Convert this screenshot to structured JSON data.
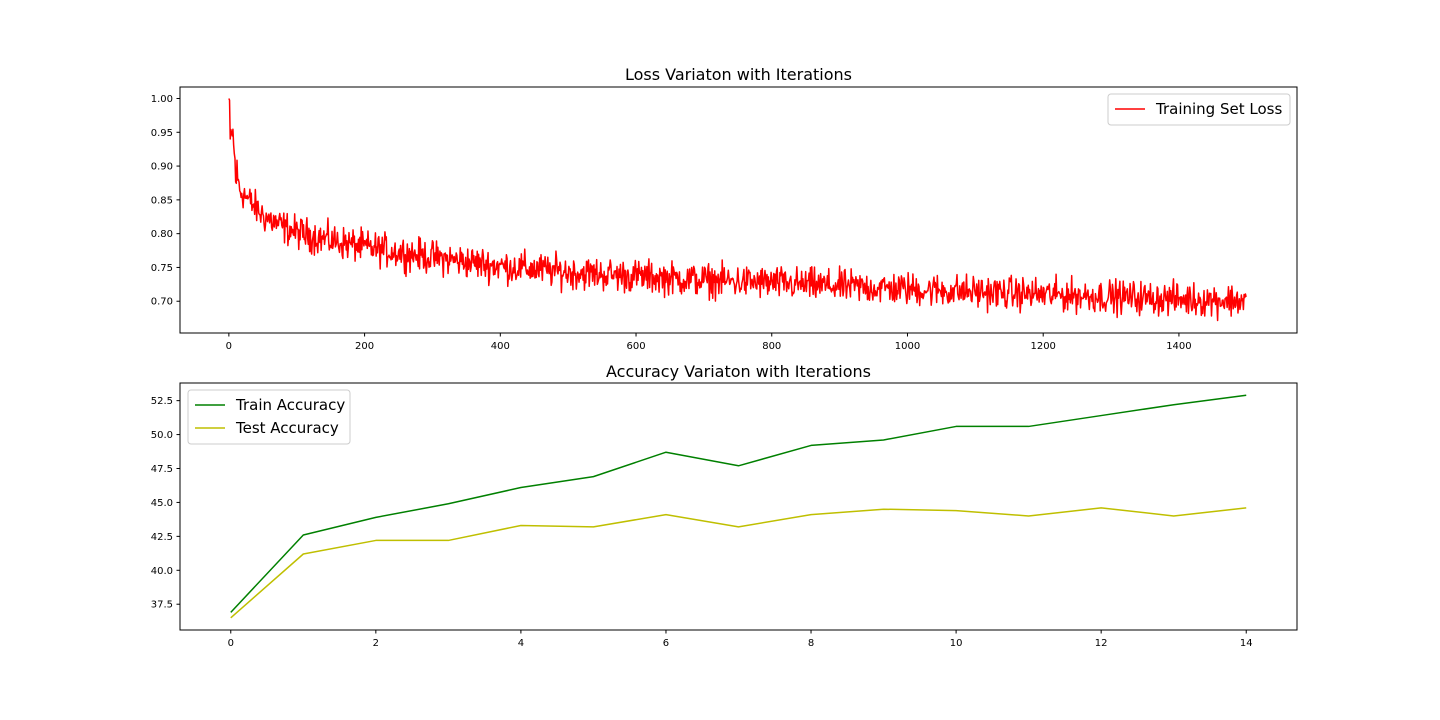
{
  "chart_data": [
    {
      "type": "line",
      "title": "Loss Variaton with Iterations",
      "xlabel": "",
      "ylabel": "",
      "xlim": [
        -72,
        1574
      ],
      "ylim": [
        0.653,
        1.017
      ],
      "xticks": [
        0,
        200,
        400,
        600,
        800,
        1000,
        1200,
        1400
      ],
      "yticks": [
        0.7,
        0.75,
        0.8,
        0.85,
        0.9,
        0.95,
        1.0
      ],
      "xtick_labels": [
        "0",
        "200",
        "400",
        "600",
        "800",
        "1000",
        "1200",
        "1400"
      ],
      "ytick_labels": [
        "0.70",
        "0.75",
        "0.80",
        "0.85",
        "0.90",
        "0.95",
        "1.00"
      ],
      "legend": "upper right",
      "series": [
        {
          "name": "Training Set Loss",
          "color": "#ff0000",
          "n_points": 1500,
          "trend": {
            "x": [
              0,
              2,
              5,
              10,
              15,
              20,
              30,
              50,
              75,
              100,
              150,
              200,
              300,
              400,
              500,
              600,
              700,
              800,
              900,
              1000,
              1100,
              1200,
              1300,
              1400,
              1499
            ],
            "y": [
              1.0,
              0.93,
              0.955,
              0.89,
              0.87,
              0.862,
              0.848,
              0.827,
              0.812,
              0.802,
              0.79,
              0.78,
              0.765,
              0.752,
              0.743,
              0.737,
              0.731,
              0.727,
              0.722,
              0.718,
              0.714,
              0.71,
              0.707,
              0.703,
              0.701
            ]
          },
          "noise_amplitude": 0.012
        }
      ]
    },
    {
      "type": "line",
      "title": "Accuracy Variaton with Iterations",
      "xlabel": "",
      "ylabel": "",
      "xlim": [
        -0.7,
        14.7
      ],
      "ylim": [
        35.6,
        53.8
      ],
      "xticks": [
        0,
        2,
        4,
        6,
        8,
        10,
        12,
        14
      ],
      "yticks": [
        37.5,
        40.0,
        42.5,
        45.0,
        47.5,
        50.0,
        52.5
      ],
      "xtick_labels": [
        "0",
        "2",
        "4",
        "6",
        "8",
        "10",
        "12",
        "14"
      ],
      "ytick_labels": [
        "37.5",
        "40.0",
        "42.5",
        "45.0",
        "47.5",
        "50.0",
        "52.5"
      ],
      "legend": "upper left",
      "x": [
        0,
        1,
        2,
        3,
        4,
        5,
        6,
        7,
        8,
        9,
        10,
        11,
        12,
        13,
        14
      ],
      "series": [
        {
          "name": "Train Accuracy",
          "color": "#008000",
          "values": [
            36.9,
            42.6,
            43.9,
            44.9,
            46.1,
            46.9,
            48.7,
            47.7,
            49.2,
            49.6,
            50.6,
            50.6,
            51.4,
            52.2,
            52.9
          ]
        },
        {
          "name": "Test Accuracy",
          "color": "#bfbf00",
          "values": [
            36.5,
            41.2,
            42.2,
            42.2,
            43.3,
            43.2,
            44.1,
            43.2,
            44.1,
            44.5,
            44.4,
            44.0,
            44.6,
            44.0,
            44.6
          ]
        }
      ]
    }
  ]
}
